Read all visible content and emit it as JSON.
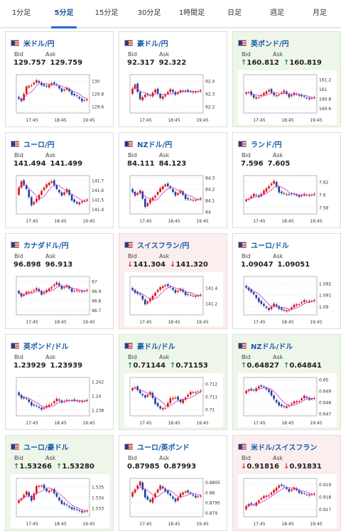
{
  "tabs": [
    "1分足",
    "5分足",
    "15分足",
    "30分足",
    "1時間足",
    "日足",
    "週足",
    "月足"
  ],
  "active_tab": 1,
  "bid_label": "Bid",
  "ask_label": "Ask",
  "time_ticks": [
    "17:45",
    "18:45",
    "19:45"
  ],
  "arrow_up": "↑",
  "arrow_down": "↓",
  "colors": {
    "up_candle": "#d11",
    "down_candle": "#1f3f9f",
    "ma": "#cc33cc",
    "ma2": "#2cb0b0"
  },
  "cards": [
    {
      "pair": "米ドル/円",
      "bid": "129.757",
      "ask": "129.759",
      "dir": "",
      "ticks": [
        "130",
        "129.8",
        "129.6"
      ],
      "lo": 129.5,
      "hi": 130.1,
      "series": [
        129.75,
        129.7,
        129.9,
        129.95,
        130.0,
        129.95,
        129.9,
        129.98,
        129.92,
        129.85,
        129.88,
        129.8,
        129.75,
        129.7
      ]
    },
    {
      "pair": "豪ドル/円",
      "bid": "92.317",
      "ask": "92.322",
      "dir": "",
      "ticks": [
        "92.4",
        "92.3",
        "92.2"
      ],
      "lo": 92.15,
      "hi": 92.45,
      "series": [
        92.3,
        92.38,
        92.25,
        92.3,
        92.28,
        92.34,
        92.26,
        92.3,
        92.33,
        92.3,
        92.32,
        92.33,
        92.31,
        92.32
      ]
    },
    {
      "pair": "英ポンド/円",
      "bid": "160.812",
      "ask": "160.819",
      "dir": "up",
      "ticks": [
        "161.2",
        "161",
        "160.8",
        "160.6"
      ],
      "lo": 160.5,
      "hi": 161.3,
      "series": [
        160.9,
        160.95,
        160.8,
        160.85,
        160.9,
        161.0,
        160.85,
        160.9,
        160.95,
        160.85,
        160.9,
        160.88,
        160.82,
        160.81
      ]
    },
    {
      "pair": "ユーロ/円",
      "bid": "141.494",
      "ask": "141.499",
      "dir": "",
      "ticks": [
        "141.7",
        "141.6",
        "141.5",
        "141.4"
      ],
      "lo": 141.35,
      "hi": 141.75,
      "series": [
        141.55,
        141.7,
        141.6,
        141.45,
        141.5,
        141.6,
        141.65,
        141.7,
        141.6,
        141.55,
        141.6,
        141.5,
        141.45,
        141.49
      ]
    },
    {
      "pair": "NZドル/円",
      "bid": "84.111",
      "ask": "84.123",
      "dir": "",
      "ticks": [
        "84.3",
        "84.2",
        "84.1",
        "84"
      ],
      "lo": 83.98,
      "hi": 84.32,
      "series": [
        84.2,
        84.15,
        84.18,
        84.05,
        84.1,
        84.15,
        84.2,
        84.25,
        84.2,
        84.15,
        84.18,
        84.12,
        84.1,
        84.11
      ]
    },
    {
      "pair": "ランド/円",
      "bid": "7.596",
      "ask": "7.605",
      "dir": "",
      "ticks": [
        "7.62",
        "7.6",
        "7.58"
      ],
      "lo": 7.57,
      "hi": 7.63,
      "series": [
        7.59,
        7.595,
        7.6,
        7.598,
        7.605,
        7.615,
        7.62,
        7.605,
        7.6,
        7.602,
        7.6,
        7.598,
        7.6,
        7.6
      ]
    },
    {
      "pair": "カナダドル/円",
      "bid": "96.898",
      "ask": "96.913",
      "dir": "",
      "ticks": [
        "97",
        "96.9",
        "96.8",
        "96.7"
      ],
      "lo": 96.65,
      "hi": 97.05,
      "series": [
        96.9,
        96.85,
        96.88,
        96.9,
        96.92,
        96.87,
        96.9,
        96.95,
        96.98,
        96.93,
        96.95,
        96.9,
        96.9,
        96.9
      ]
    },
    {
      "pair": "スイスフラン/円",
      "bid": "141.304",
      "ask": "141.320",
      "dir": "down",
      "ticks": [
        "141.4",
        "141.2"
      ],
      "lo": 141.05,
      "hi": 141.55,
      "series": [
        141.4,
        141.35,
        141.3,
        141.2,
        141.25,
        141.35,
        141.4,
        141.45,
        141.4,
        141.35,
        141.38,
        141.32,
        141.3,
        141.3
      ]
    },
    {
      "pair": "ユーロ/ドル",
      "bid": "1.09047",
      "ask": "1.09051",
      "dir": "",
      "ticks": [
        "1.092",
        "1.091",
        "1.09"
      ],
      "lo": 1.0893,
      "hi": 1.0926,
      "series": [
        1.0918,
        1.0915,
        1.091,
        1.0905,
        1.09,
        1.0898,
        1.0902,
        1.0899,
        1.0896,
        1.0898,
        1.0901,
        1.0903,
        1.0905,
        1.0905
      ]
    },
    {
      "pair": "英ポンド/ドル",
      "bid": "1.23929",
      "ask": "1.23939",
      "dir": "",
      "ticks": [
        "1.242",
        "1.24",
        "1.238"
      ],
      "lo": 1.2372,
      "hi": 1.2426,
      "series": [
        1.2405,
        1.2398,
        1.2395,
        1.2388,
        1.2385,
        1.2382,
        1.2385,
        1.239,
        1.2395,
        1.2392,
        1.2393,
        1.2395,
        1.2392,
        1.2393
      ]
    },
    {
      "pair": "豪ドル/ドル",
      "bid": "0.71144",
      "ask": "0.71153",
      "dir": "up",
      "ticks": [
        "0.712",
        "0.711",
        "0.71"
      ],
      "lo": 0.7095,
      "hi": 0.7125,
      "series": [
        0.7115,
        0.7118,
        0.7112,
        0.711,
        0.7113,
        0.7105,
        0.71,
        0.7102,
        0.7108,
        0.711,
        0.7105,
        0.711,
        0.7113,
        0.7114
      ]
    },
    {
      "pair": "NZドル/ドル",
      "bid": "0.64827",
      "ask": "0.64841",
      "dir": "up",
      "ticks": [
        "0.65",
        "0.649",
        "0.648",
        "0.647"
      ],
      "lo": 0.6468,
      "hi": 0.6502,
      "series": [
        0.6488,
        0.6492,
        0.649,
        0.6495,
        0.6493,
        0.649,
        0.6482,
        0.6478,
        0.6475,
        0.6478,
        0.648,
        0.6482,
        0.6485,
        0.6483
      ]
    },
    {
      "pair": "ユーロ/豪ドル",
      "bid": "1.53266",
      "ask": "1.53280",
      "dir": "up",
      "ticks": [
        "1.535",
        "1.534",
        "1.533"
      ],
      "lo": 1.5322,
      "hi": 1.5358,
      "series": [
        1.5335,
        1.534,
        1.5345,
        1.5338,
        1.535,
        1.5352,
        1.5345,
        1.5348,
        1.534,
        1.5335,
        1.5332,
        1.533,
        1.5328,
        1.5327
      ]
    },
    {
      "pair": "ユーロ/英ポンド",
      "bid": "0.87985",
      "ask": "0.87993",
      "dir": "",
      "ticks": [
        "0.8805",
        "0.88",
        "0.8795",
        "0.879"
      ],
      "lo": 0.8788,
      "hi": 0.8807,
      "series": [
        0.8798,
        0.8802,
        0.8805,
        0.8798,
        0.8795,
        0.88,
        0.8803,
        0.8801,
        0.8798,
        0.8796,
        0.8799,
        0.8801,
        0.8799,
        0.8798
      ]
    },
    {
      "pair": "米ドル/スイスフラン",
      "bid": "0.91816",
      "ask": "0.91831",
      "dir": "down",
      "ticks": [
        "0.919",
        "0.918",
        "0.917"
      ],
      "lo": 0.9164,
      "hi": 0.9195,
      "series": [
        0.917,
        0.9175,
        0.9173,
        0.9178,
        0.918,
        0.9182,
        0.9185,
        0.919,
        0.9188,
        0.9185,
        0.9187,
        0.9184,
        0.9182,
        0.9182
      ]
    }
  ]
}
